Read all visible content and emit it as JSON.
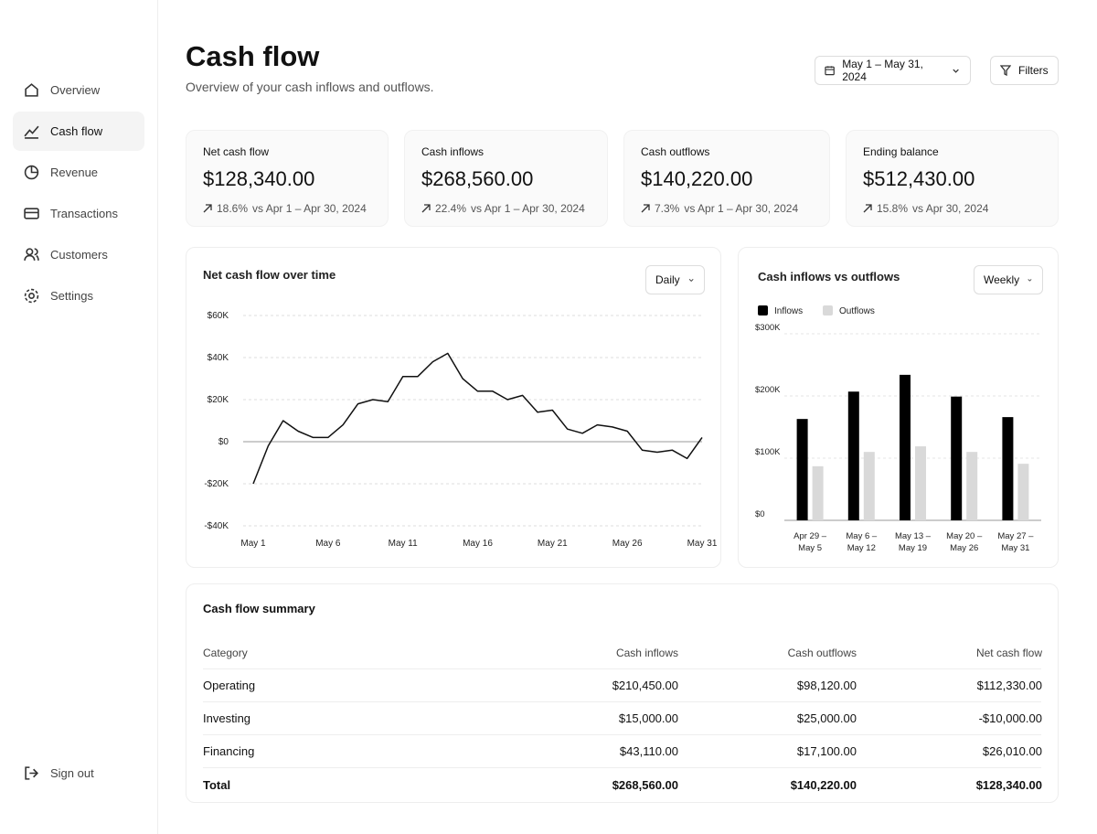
{
  "nav": {
    "items": [
      "Overview",
      "Cash flow",
      "Revenue",
      "Transactions",
      "Customers",
      "Settings"
    ],
    "sign_out": "Sign out"
  },
  "header": {
    "title": "Cash flow",
    "subtitle": "Overview of your cash inflows and outflows.",
    "date_range": "May 1 – May 31, 2024",
    "filters": "Filters"
  },
  "kpis": [
    {
      "label": "Net cash flow",
      "value": "$128,340.00",
      "change": "18.6%",
      "comparison": "vs Apr 1 – Apr 30, 2024"
    },
    {
      "label": "Cash inflows",
      "value": "$268,560.00",
      "change": "22.4%",
      "comparison": "vs Apr 1 – Apr 30, 2024"
    },
    {
      "label": "Cash outflows",
      "value": "$140,220.00",
      "change": "7.3%",
      "comparison": "vs Apr 1 – Apr 30, 2024"
    },
    {
      "label": "Ending balance",
      "value": "$512,430.00",
      "change": "15.8%",
      "comparison": "vs Apr 30, 2024"
    }
  ],
  "chart_data": [
    {
      "type": "line",
      "title": "Net cash flow over time",
      "control": "Daily",
      "x": [
        1,
        2,
        3,
        4,
        5,
        6,
        7,
        8,
        9,
        10,
        11,
        12,
        13,
        14,
        15,
        16,
        17,
        18,
        19,
        20,
        21,
        22,
        23,
        24,
        25,
        26,
        27,
        28,
        29,
        30,
        31
      ],
      "series": [
        {
          "name": "Net cash flow",
          "color": "#111111",
          "values": [
            -20000,
            -2000,
            10000,
            5000,
            2000,
            2000,
            8000,
            18000,
            20000,
            19000,
            31000,
            31000,
            38000,
            42000,
            30000,
            24000,
            24000,
            20000,
            22000,
            14000,
            15000,
            6000,
            4000,
            8000,
            7000,
            5000,
            -4000,
            -5000,
            -4000,
            -8000,
            2000
          ]
        }
      ],
      "xlim": [
        1,
        31
      ],
      "xticks": [
        {
          "value": 1,
          "label": "May 1"
        },
        {
          "value": 6,
          "label": "May 6"
        },
        {
          "value": 11,
          "label": "May 11"
        },
        {
          "value": 16,
          "label": "May 16"
        },
        {
          "value": 21,
          "label": "May 21"
        },
        {
          "value": 26,
          "label": "May 26"
        },
        {
          "value": 31,
          "label": "May 31"
        }
      ],
      "ylim": [
        -40000,
        60000
      ],
      "yticks": [
        {
          "value": -40000,
          "label": "-$40K"
        },
        {
          "value": -20000,
          "label": "-$20K"
        },
        {
          "value": 0,
          "label": "$0"
        },
        {
          "value": 20000,
          "label": "$20K"
        },
        {
          "value": 40000,
          "label": "$40K"
        },
        {
          "value": 60000,
          "label": "$60K"
        }
      ],
      "grid": true
    },
    {
      "type": "bar",
      "title": "Cash inflows vs outflows",
      "control": "Weekly",
      "categories": [
        "Apr 29 – May 5",
        "May 6 – May 12",
        "May 13 – May 19",
        "May 20 – May 26",
        "May 27 – May 31"
      ],
      "series": [
        {
          "name": "Inflows",
          "color": "#000000",
          "values": [
            163000,
            207000,
            234000,
            199000,
            166000
          ]
        },
        {
          "name": "Outflows",
          "color": "#d9d9d9",
          "values": [
            87000,
            110000,
            119000,
            110000,
            91000
          ]
        }
      ],
      "ylim": [
        0,
        300000
      ],
      "yticks": [
        {
          "value": 0,
          "label": "$0"
        },
        {
          "value": 100000,
          "label": "$100K"
        },
        {
          "value": 200000,
          "label": "$200K"
        },
        {
          "value": 300000,
          "label": "$300K"
        }
      ],
      "grid": true,
      "legend": "top-left"
    }
  ],
  "table": {
    "title": "Cash flow summary",
    "columns": [
      "Category",
      "Cash inflows",
      "Cash outflows",
      "Net cash flow"
    ],
    "rows": [
      [
        "Operating",
        "$210,450.00",
        "$98,120.00",
        "$112,330.00"
      ],
      [
        "Investing",
        "$15,000.00",
        "$25,000.00",
        "-$10,000.00"
      ],
      [
        "Financing",
        "$43,110.00",
        "$17,100.00",
        "$26,010.00"
      ]
    ],
    "total": [
      "Total",
      "$268,560.00",
      "$140,220.00",
      "$128,340.00"
    ]
  }
}
